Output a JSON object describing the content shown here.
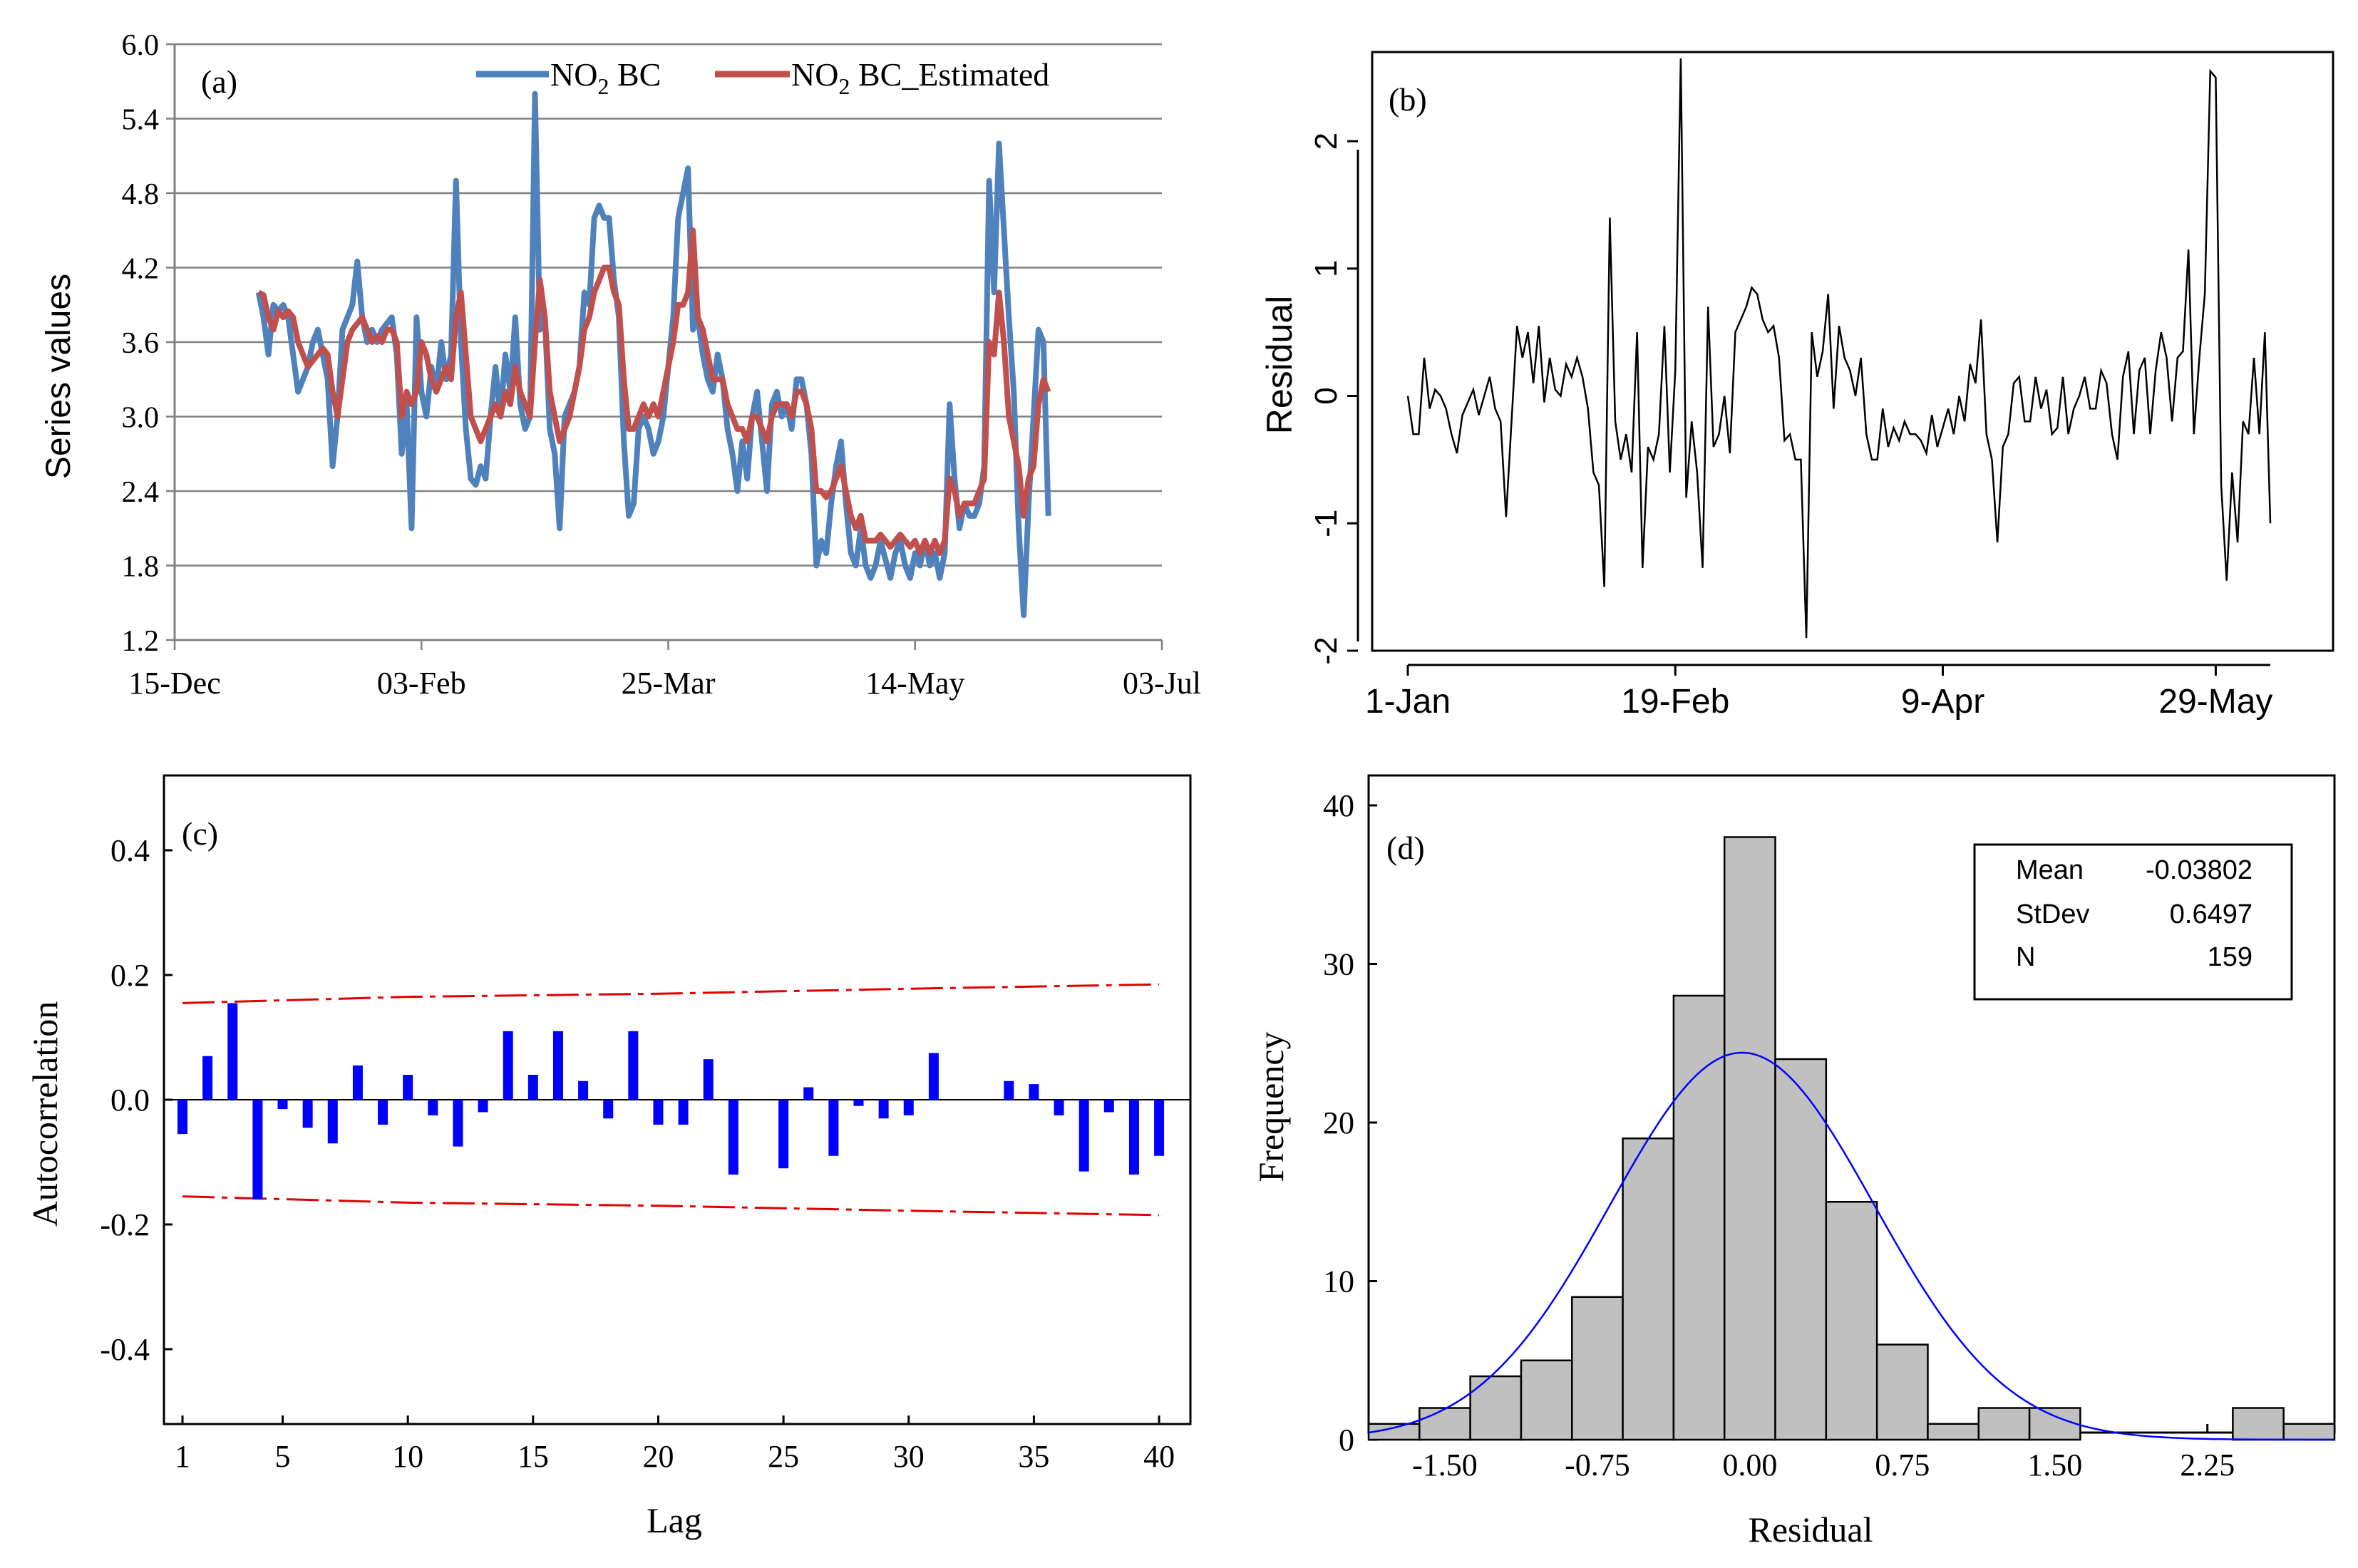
{
  "colors": {
    "no2_bc": "#4F81BD",
    "no2_estimated": "#C0504D",
    "residual_line": "#000000",
    "acf_bar": "#0000FF",
    "acf_limit": "#E00000",
    "hist_fill": "#C0C0C0",
    "normal_curve": "#0000FF",
    "grid": "#808080"
  },
  "chart_data": [
    {
      "id": "a",
      "type": "line",
      "panel_label": "(a)",
      "ylabel": "Series values",
      "xlabel": "",
      "ylim": [
        1.2,
        6.0
      ],
      "yticks": [
        "1.2",
        "1.8",
        "2.4",
        "3.0",
        "3.6",
        "4.2",
        "4.8",
        "5.4",
        "6.0"
      ],
      "xlim_days": [
        -17,
        183
      ],
      "xticks": [
        {
          "day": -17,
          "label": "15-Dec"
        },
        {
          "day": 33,
          "label": "03-Feb"
        },
        {
          "day": 83,
          "label": "25-Mar"
        },
        {
          "day": 133,
          "label": "14-May"
        },
        {
          "day": 183,
          "label": "03-Jul"
        }
      ],
      "grid": "horizontal",
      "legend": [
        "NO",
        "2",
        " BC",
        "NO",
        "2",
        " BC_Estimated"
      ],
      "legend_position": "top-right",
      "series": [
        {
          "name": "NO2 BC",
          "values": [
            4.0,
            3.8,
            3.5,
            3.9,
            3.85,
            3.9,
            3.8,
            3.5,
            3.2,
            3.3,
            3.4,
            3.6,
            3.7,
            3.5,
            3.3,
            2.6,
            3.0,
            3.7,
            3.8,
            3.9,
            4.25,
            3.8,
            3.6,
            3.7,
            3.6,
            3.7,
            3.75,
            3.8,
            3.5,
            2.7,
            3.1,
            2.1,
            3.8,
            3.2,
            3.0,
            3.4,
            3.2,
            3.6,
            3.3,
            3.5,
            4.9,
            3.6,
            2.9,
            2.5,
            2.45,
            2.6,
            2.5,
            3.0,
            3.4,
            3.0,
            3.5,
            3.2,
            3.8,
            3.1,
            2.9,
            3.0,
            5.6,
            3.7,
            3.8,
            2.9,
            2.7,
            2.1,
            3.0,
            3.1,
            3.2,
            3.4,
            4.0,
            3.9,
            4.6,
            4.7,
            4.6,
            4.6,
            4.1,
            3.8,
            2.8,
            2.2,
            2.3,
            2.9,
            3.0,
            2.9,
            2.7,
            2.8,
            3.0,
            3.4,
            3.8,
            4.6,
            4.8,
            5.0,
            3.7,
            3.8,
            3.5,
            3.3,
            3.2,
            3.5,
            3.3,
            2.9,
            2.7,
            2.4,
            2.8,
            2.5,
            3.0,
            3.2,
            2.8,
            2.4,
            3.1,
            3.2,
            3.0,
            3.1,
            2.9,
            3.3,
            3.3,
            3.1,
            2.7,
            1.8,
            2.0,
            1.9,
            2.3,
            2.6,
            2.8,
            2.3,
            1.9,
            1.8,
            2.1,
            1.8,
            1.7,
            1.8,
            2.0,
            1.85,
            1.7,
            1.9,
            2.0,
            1.8,
            1.7,
            1.9,
            1.8,
            2.0,
            1.8,
            1.9,
            1.7,
            1.9,
            3.1,
            2.5,
            2.1,
            2.3,
            2.2,
            2.2,
            2.3,
            2.6,
            4.9,
            4.0,
            5.2,
            4.5,
            3.8,
            3.2,
            2.1,
            1.4,
            2.3,
            3.0,
            3.7,
            3.6,
            2.2
          ]
        },
        {
          "name": "NO2 BC_Estimated",
          "values": [
            4.0,
            3.98,
            3.8,
            3.7,
            3.85,
            3.8,
            3.85,
            3.8,
            3.6,
            3.5,
            3.4,
            3.45,
            3.5,
            3.55,
            3.5,
            3.2,
            3.0,
            3.3,
            3.6,
            3.7,
            3.75,
            3.8,
            3.7,
            3.6,
            3.65,
            3.6,
            3.7,
            3.7,
            3.6,
            3.0,
            3.2,
            3.1,
            3.2,
            3.6,
            3.5,
            3.3,
            3.2,
            3.3,
            3.4,
            3.3,
            3.8,
            4.0,
            3.5,
            3.0,
            2.9,
            2.8,
            2.9,
            3.0,
            3.1,
            3.0,
            3.2,
            3.1,
            3.4,
            3.2,
            3.1,
            3.0,
            3.6,
            4.1,
            3.8,
            3.2,
            3.0,
            2.8,
            2.9,
            3.0,
            3.2,
            3.4,
            3.7,
            3.8,
            4.0,
            4.1,
            4.2,
            4.2,
            4.0,
            3.9,
            3.3,
            2.9,
            2.9,
            3.0,
            3.1,
            3.0,
            3.1,
            3.0,
            3.2,
            3.4,
            3.6,
            3.9,
            3.9,
            4.0,
            4.5,
            3.8,
            3.7,
            3.5,
            3.3,
            3.3,
            3.3,
            3.1,
            3.0,
            2.9,
            2.9,
            2.8,
            3.0,
            3.0,
            2.9,
            2.8,
            3.0,
            3.1,
            3.1,
            3.1,
            3.0,
            3.2,
            3.2,
            3.1,
            2.9,
            2.4,
            2.4,
            2.35,
            2.4,
            2.5,
            2.6,
            2.4,
            2.2,
            2.1,
            2.2,
            2.0,
            2.0,
            2.0,
            2.05,
            2.0,
            1.95,
            2.0,
            2.05,
            2.0,
            1.95,
            2.0,
            1.9,
            2.0,
            1.9,
            2.0,
            1.9,
            2.0,
            2.5,
            2.4,
            2.2,
            2.3,
            2.3,
            2.3,
            2.4,
            2.5,
            3.6,
            3.5,
            4.0,
            3.6,
            3.0,
            2.8,
            2.6,
            2.2,
            2.5,
            2.6,
            3.1,
            3.3,
            3.2
          ]
        }
      ]
    },
    {
      "id": "b",
      "type": "line",
      "panel_label": "(b)",
      "ylabel": "Residual",
      "xlabel": "",
      "ylim": [
        -2.0,
        2.7
      ],
      "yticks": [
        "-2",
        "-1",
        "0",
        "1",
        "2"
      ],
      "xticks": [
        {
          "index": 0,
          "label": "1-Jan"
        },
        {
          "index": 49,
          "label": "19-Feb"
        },
        {
          "index": 98,
          "label": "9-Apr"
        },
        {
          "index": 148,
          "label": "29-May"
        }
      ],
      "grid": "none",
      "series": [
        {
          "name": "Residual",
          "values": [
            0.0,
            -0.3,
            -0.3,
            0.3,
            -0.1,
            0.05,
            0.0,
            -0.1,
            -0.3,
            -0.45,
            -0.15,
            -0.05,
            0.05,
            -0.15,
            0.0,
            0.15,
            -0.1,
            -0.2,
            -0.95,
            -0.2,
            0.55,
            0.3,
            0.5,
            0.1,
            0.55,
            -0.05,
            0.3,
            0.05,
            0.0,
            0.25,
            0.15,
            0.3,
            0.15,
            -0.1,
            -0.6,
            -0.7,
            -1.5,
            1.4,
            -0.2,
            -0.5,
            -0.3,
            -0.6,
            0.5,
            -1.35,
            -0.4,
            -0.5,
            -0.3,
            0.55,
            -0.6,
            0.2,
            2.65,
            -0.8,
            -0.2,
            -0.6,
            -1.35,
            0.7,
            -0.4,
            -0.3,
            0.0,
            -0.45,
            0.5,
            0.6,
            0.7,
            0.85,
            0.8,
            0.6,
            0.5,
            0.55,
            0.3,
            -0.35,
            -0.3,
            -0.5,
            -0.5,
            -1.9,
            0.5,
            0.15,
            0.35,
            0.8,
            -0.1,
            0.55,
            0.3,
            0.2,
            0.0,
            0.3,
            -0.3,
            -0.5,
            -0.5,
            -0.1,
            -0.4,
            -0.25,
            -0.35,
            -0.2,
            -0.3,
            -0.3,
            -0.35,
            -0.45,
            -0.15,
            -0.4,
            -0.25,
            -0.1,
            -0.3,
            0.0,
            -0.2,
            0.25,
            0.1,
            0.6,
            -0.3,
            -0.5,
            -1.15,
            -0.4,
            -0.3,
            0.1,
            0.15,
            -0.2,
            -0.2,
            0.15,
            -0.1,
            0.05,
            -0.3,
            -0.25,
            0.15,
            -0.3,
            -0.1,
            0.0,
            0.15,
            -0.1,
            -0.1,
            0.2,
            0.1,
            -0.3,
            -0.5,
            0.15,
            0.35,
            -0.3,
            0.2,
            0.3,
            -0.3,
            0.2,
            0.5,
            0.3,
            -0.2,
            0.3,
            0.35,
            1.15,
            -0.3,
            0.3,
            0.8,
            2.55,
            2.5,
            -0.7,
            -1.45,
            -0.6,
            -1.15,
            -0.2,
            -0.3,
            0.3,
            -0.3,
            0.5,
            -1.0
          ]
        }
      ]
    },
    {
      "id": "c",
      "type": "bar",
      "panel_label": "(c)",
      "ylabel": "Autocorrelation",
      "xlabel": "Lag",
      "ylim": [
        -0.52,
        0.52
      ],
      "yticks": [
        "-0.4",
        "-0.2",
        "0.0",
        "0.2",
        "0.4"
      ],
      "xticks": [
        "1",
        "5",
        "10",
        "15",
        "20",
        "25",
        "30",
        "35",
        "40"
      ],
      "categories": [
        1,
        2,
        3,
        4,
        5,
        6,
        7,
        8,
        9,
        10,
        11,
        12,
        13,
        14,
        15,
        16,
        17,
        18,
        19,
        20,
        21,
        22,
        23,
        24,
        25,
        26,
        27,
        28,
        29,
        30,
        31,
        32,
        33,
        34,
        35,
        36,
        37,
        38,
        39,
        40
      ],
      "values": [
        -0.055,
        0.07,
        0.155,
        -0.16,
        -0.015,
        -0.045,
        -0.07,
        0.055,
        -0.04,
        0.04,
        -0.025,
        -0.075,
        -0.02,
        0.11,
        0.04,
        0.11,
        0.03,
        -0.03,
        0.11,
        -0.04,
        -0.04,
        0.065,
        -0.12,
        0.0,
        -0.11,
        0.02,
        -0.09,
        -0.01,
        -0.03,
        -0.025,
        0.075,
        0.0,
        0.0,
        0.03,
        0.025,
        -0.025,
        -0.115,
        -0.02,
        -0.12,
        -0.09
      ],
      "confidence_limits": {
        "lags": [
          1,
          10,
          20,
          30,
          40
        ],
        "upper": [
          0.155,
          0.165,
          0.17,
          0.178,
          0.185
        ],
        "lower": [
          -0.155,
          -0.165,
          -0.17,
          -0.178,
          -0.185
        ]
      }
    },
    {
      "id": "d",
      "type": "bar",
      "panel_label": "(d)",
      "ylabel": "Frequency",
      "xlabel": "Residual",
      "ylim": [
        0,
        40
      ],
      "yticks": [
        "0",
        "10",
        "20",
        "30",
        "40"
      ],
      "xticks": [
        "-1.50",
        "-0.75",
        "0.00",
        "0.75",
        "1.50",
        "2.25"
      ],
      "xlim": [
        -1.875,
        2.875
      ],
      "bin_width": 0.25,
      "bin_lefts": [
        -1.875,
        -1.625,
        -1.375,
        -1.125,
        -0.875,
        -0.625,
        -0.375,
        -0.125,
        0.125,
        0.375,
        0.625,
        0.875,
        1.125,
        1.375,
        1.625,
        1.875,
        2.125,
        2.375,
        2.625
      ],
      "values": [
        1,
        2,
        4,
        5,
        9,
        19,
        28,
        38,
        24,
        15,
        6,
        1,
        2,
        2,
        0,
        0,
        0,
        2,
        1
      ],
      "normal_fit": {
        "mean": -0.03802,
        "stdev": 0.6497,
        "n": 159
      },
      "stats_box": [
        {
          "label": "Mean",
          "value": "-0.03802"
        },
        {
          "label": "StDev",
          "value": "0.6497"
        },
        {
          "label": "N",
          "value": "159"
        }
      ]
    }
  ]
}
